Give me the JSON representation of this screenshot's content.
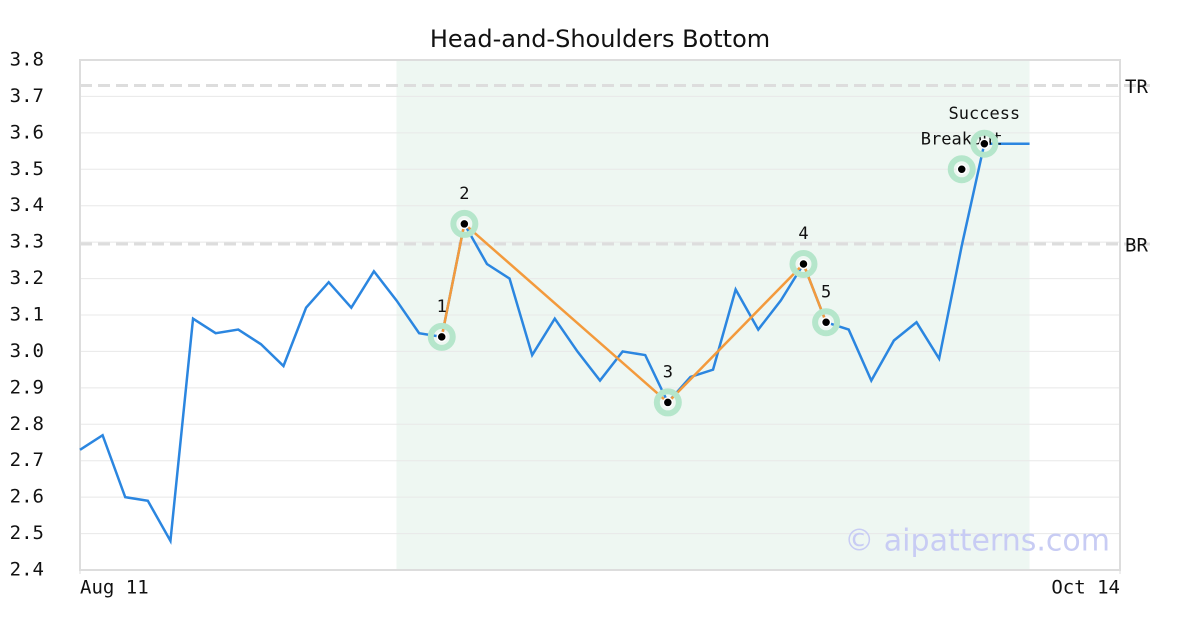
{
  "chart_data": {
    "type": "line",
    "title": "Head-and-Shoulders Bottom",
    "x": [
      0,
      1,
      2,
      3,
      4,
      5,
      6,
      7,
      8,
      9,
      10,
      11,
      12,
      13,
      14,
      15,
      16,
      17,
      18,
      19,
      20,
      21,
      22,
      23,
      24,
      25,
      26,
      27,
      28,
      29,
      30,
      31,
      32,
      33,
      34,
      35,
      36,
      37,
      38,
      39,
      40,
      41,
      42
    ],
    "series": [
      {
        "color": "#2b86e0",
        "values": [
          2.73,
          2.77,
          2.6,
          2.59,
          2.48,
          3.09,
          3.05,
          3.06,
          3.02,
          2.96,
          3.12,
          3.19,
          3.12,
          3.22,
          3.14,
          3.05,
          3.04,
          3.35,
          3.24,
          3.2,
          2.99,
          3.09,
          3.0,
          2.92,
          3.0,
          2.99,
          2.86,
          2.93,
          2.95,
          3.17,
          3.06,
          3.14,
          3.24,
          3.08,
          3.06,
          2.92,
          3.03,
          3.08,
          2.98,
          3.29,
          3.57,
          3.57,
          3.57
        ]
      }
    ],
    "xlim": [
      0,
      46
    ],
    "xticks": [
      {
        "value": 0,
        "label": "Aug 11"
      },
      {
        "value": 46,
        "label": "Oct 14"
      }
    ],
    "ylim": [
      2.4,
      3.8
    ],
    "yticks": [
      2.4,
      2.5,
      2.6,
      2.7,
      2.8,
      2.9,
      {
        "value": 3.0,
        "label": "3.0"
      },
      3.1,
      3.2,
      3.3,
      3.4,
      3.5,
      3.6,
      3.7,
      3.8
    ],
    "grid": true,
    "highlight_x": [
      14,
      42
    ],
    "levels": [
      {
        "label": "TR",
        "value": 3.73
      },
      {
        "label": "BR",
        "value": 3.295
      }
    ],
    "pattern": {
      "color": "#f39a3c",
      "labels": [
        "1",
        "2",
        "3",
        "4",
        "5"
      ],
      "x": [
        16,
        17,
        26,
        32,
        33
      ],
      "y": [
        3.04,
        3.35,
        2.86,
        3.24,
        3.08
      ]
    },
    "signals": {
      "labels": [
        "Breakout",
        "Success"
      ],
      "x": [
        39,
        40
      ],
      "y": [
        3.5,
        3.57
      ]
    },
    "watermark": "© aipatterns.com"
  }
}
